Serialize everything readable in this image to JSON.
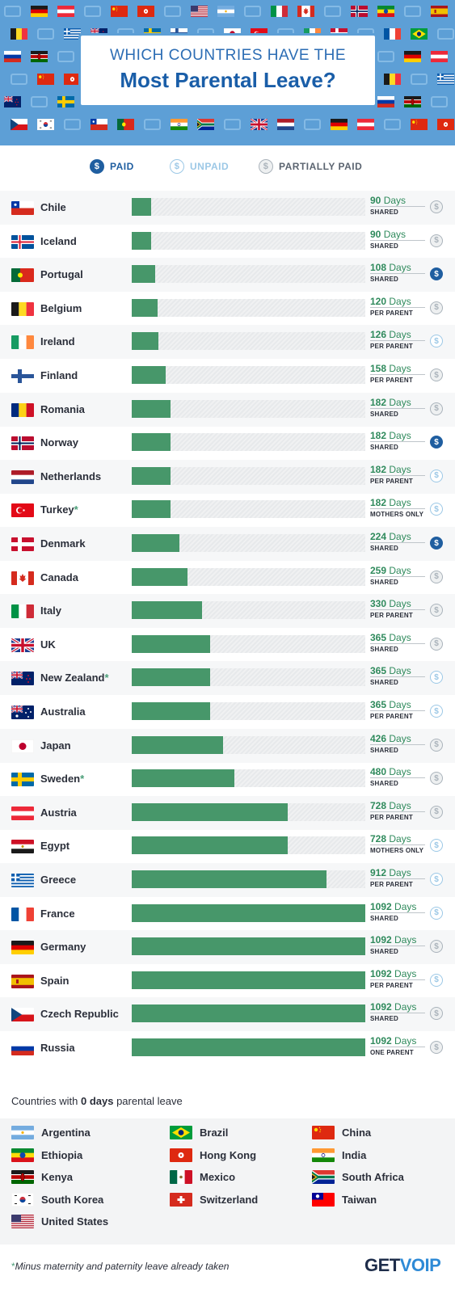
{
  "header": {
    "title_line1": "WHICH COUNTRIES HAVE THE",
    "title_line2": "Most Parental Leave?"
  },
  "legend": {
    "paid": "PAID",
    "unpaid": "UNPAID",
    "partial": "PARTIALLY PAID"
  },
  "colors": {
    "bar": "#47976a",
    "paid": "#1f5ea0",
    "unpaid": "#9cc8e6",
    "partial": "#aab3bb",
    "header": "#5d9fd6"
  },
  "chart_data": {
    "type": "bar",
    "orientation": "horizontal",
    "title": "WHICH COUNTRIES HAVE THE Most Parental Leave?",
    "xmax": 1092,
    "unit": "Days",
    "rows": [
      {
        "country": "Chile",
        "star": false,
        "days": 90,
        "type": "SHARED",
        "pay": "partial",
        "flag": "chile"
      },
      {
        "country": "Iceland",
        "star": false,
        "days": 90,
        "type": "SHARED",
        "pay": "partial",
        "flag": "iceland"
      },
      {
        "country": "Portugal",
        "star": false,
        "days": 108,
        "type": "SHARED",
        "pay": "paid",
        "flag": "portugal"
      },
      {
        "country": "Belgium",
        "star": false,
        "days": 120,
        "type": "PER PARENT",
        "pay": "partial",
        "flag": "belgium"
      },
      {
        "country": "Ireland",
        "star": false,
        "days": 126,
        "type": "PER PARENT",
        "pay": "unpaid",
        "flag": "ireland"
      },
      {
        "country": "Finland",
        "star": false,
        "days": 158,
        "type": "PER PARENT",
        "pay": "partial",
        "flag": "finland"
      },
      {
        "country": "Romania",
        "star": false,
        "days": 182,
        "type": "SHARED",
        "pay": "partial",
        "flag": "romania"
      },
      {
        "country": "Norway",
        "star": false,
        "days": 182,
        "type": "SHARED",
        "pay": "paid",
        "flag": "norway"
      },
      {
        "country": "Netherlands",
        "star": false,
        "days": 182,
        "type": "PER PARENT",
        "pay": "unpaid",
        "flag": "netherlands"
      },
      {
        "country": "Turkey",
        "star": true,
        "days": 182,
        "type": "MOTHERS ONLY",
        "pay": "unpaid",
        "flag": "turkey"
      },
      {
        "country": "Denmark",
        "star": false,
        "days": 224,
        "type": "SHARED",
        "pay": "paid",
        "flag": "denmark"
      },
      {
        "country": "Canada",
        "star": false,
        "days": 259,
        "type": "SHARED",
        "pay": "partial",
        "flag": "canada"
      },
      {
        "country": "Italy",
        "star": false,
        "days": 330,
        "type": "PER PARENT",
        "pay": "partial",
        "flag": "italy"
      },
      {
        "country": "UK",
        "star": false,
        "days": 365,
        "type": "SHARED",
        "pay": "partial",
        "flag": "uk"
      },
      {
        "country": "New Zealand",
        "star": true,
        "days": 365,
        "type": "SHARED",
        "pay": "unpaid",
        "flag": "newzealand"
      },
      {
        "country": "Australia",
        "star": false,
        "days": 365,
        "type": "PER PARENT",
        "pay": "unpaid",
        "flag": "australia"
      },
      {
        "country": "Japan",
        "star": false,
        "days": 426,
        "type": "SHARED",
        "pay": "partial",
        "flag": "japan"
      },
      {
        "country": "Sweden",
        "star": true,
        "days": 480,
        "type": "SHARED",
        "pay": "partial",
        "flag": "sweden"
      },
      {
        "country": "Austria",
        "star": false,
        "days": 728,
        "type": "PER PARENT",
        "pay": "partial",
        "flag": "austria"
      },
      {
        "country": "Egypt",
        "star": false,
        "days": 728,
        "type": "MOTHERS ONLY",
        "pay": "unpaid",
        "flag": "egypt"
      },
      {
        "country": "Greece",
        "star": false,
        "days": 912,
        "type": "PER PARENT",
        "pay": "unpaid",
        "flag": "greece"
      },
      {
        "country": "France",
        "star": false,
        "days": 1092,
        "type": "SHARED",
        "pay": "unpaid",
        "flag": "france"
      },
      {
        "country": "Germany",
        "star": false,
        "days": 1092,
        "type": "SHARED",
        "pay": "partial",
        "flag": "germany"
      },
      {
        "country": "Spain",
        "star": false,
        "days": 1092,
        "type": "PER PARENT",
        "pay": "unpaid",
        "flag": "spain"
      },
      {
        "country": "Czech Republic",
        "star": false,
        "days": 1092,
        "type": "SHARED",
        "pay": "partial",
        "flag": "czech"
      },
      {
        "country": "Russia",
        "star": false,
        "days": 1092,
        "type": "ONE PARENT",
        "pay": "partial",
        "flag": "russia"
      }
    ]
  },
  "zero_section": {
    "prefix": "Countries with ",
    "emphasis": "0 days",
    "suffix": " parental leave",
    "countries": [
      {
        "name": "Argentina",
        "flag": "argentina"
      },
      {
        "name": "Brazil",
        "flag": "brazil"
      },
      {
        "name": "China",
        "flag": "china"
      },
      {
        "name": "Ethiopia",
        "flag": "ethiopia"
      },
      {
        "name": "Hong Kong",
        "flag": "hongkong"
      },
      {
        "name": "India",
        "flag": "india"
      },
      {
        "name": "Kenya",
        "flag": "kenya"
      },
      {
        "name": "Mexico",
        "flag": "mexico"
      },
      {
        "name": "South Africa",
        "flag": "southafrica"
      },
      {
        "name": "South Korea",
        "flag": "southkorea"
      },
      {
        "name": "Switzerland",
        "flag": "switzerland"
      },
      {
        "name": "Taiwan",
        "flag": "taiwan"
      },
      {
        "name": "United States",
        "flag": "usa"
      }
    ]
  },
  "footer": {
    "star": "*",
    "note": "Minus maternity and paternity leave already taken",
    "brand_a": "GET",
    "brand_b": "VOIP"
  }
}
